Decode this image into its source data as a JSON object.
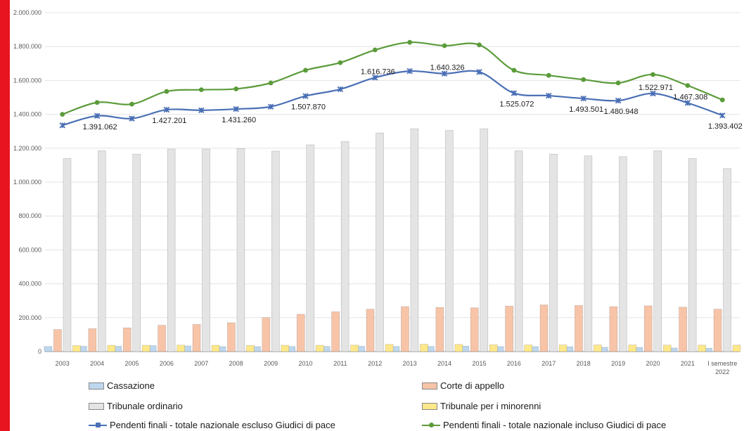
{
  "colors": {
    "cassazione": "#bdd7ee",
    "corte": "#f8c4a8",
    "tribunale": "#e4e4e4",
    "minorenni": "#ffe88a",
    "line_escluso": "#4a6fb5",
    "line_incluso": "#5b9b3a",
    "side_bar": "#e8141f"
  },
  "chart_data": {
    "type": "bar",
    "categories": [
      "2003",
      "2004",
      "2005",
      "2006",
      "2007",
      "2008",
      "2009",
      "2010",
      "2011",
      "2012",
      "2013",
      "2014",
      "2015",
      "2016",
      "2017",
      "2018",
      "2019",
      "2020",
      "2021",
      "I semestre 2022"
    ],
    "category_lines": [
      [
        "2003"
      ],
      [
        "2004"
      ],
      [
        "2005"
      ],
      [
        "2006"
      ],
      [
        "2007"
      ],
      [
        "2008"
      ],
      [
        "2009"
      ],
      [
        "2010"
      ],
      [
        "2011"
      ],
      [
        "2012"
      ],
      [
        "2013"
      ],
      [
        "2014"
      ],
      [
        "2015"
      ],
      [
        "2016"
      ],
      [
        "2017"
      ],
      [
        "2018"
      ],
      [
        "2019"
      ],
      [
        "2020"
      ],
      [
        "2021"
      ],
      [
        "I semestre",
        "2022"
      ]
    ],
    "ylim": [
      0,
      2000000
    ],
    "yticks": [
      0,
      200000,
      400000,
      600000,
      800000,
      1000000,
      1200000,
      1400000,
      1600000,
      1800000,
      2000000
    ],
    "ytick_labels": [
      "0",
      "200.000",
      "400.000",
      "600.000",
      "800.000",
      "1.000.000",
      "1.200.000",
      "1.400.000",
      "1.600.000",
      "1.800.000",
      "2.000.000"
    ],
    "grid": true,
    "legend_position": "bottom",
    "bar_series": [
      {
        "name": "Cassazione",
        "key": "cassazione",
        "values": [
          30000,
          31000,
          31000,
          35000,
          33000,
          29000,
          29000,
          30000,
          30000,
          31000,
          30000,
          30000,
          32000,
          29000,
          29000,
          28000,
          25000,
          24000,
          21000,
          20000
        ]
      },
      {
        "name": "Corte di appello",
        "key": "corte",
        "values": [
          130000,
          135000,
          140000,
          155000,
          160000,
          170000,
          200000,
          220000,
          235000,
          250000,
          265000,
          260000,
          258000,
          268000,
          275000,
          272000,
          265000,
          270000,
          262000,
          250000
        ]
      },
      {
        "name": "Tribunale ordinario",
        "key": "tribunale",
        "values": [
          1140000,
          1185000,
          1165000,
          1195000,
          1195000,
          1198000,
          1183000,
          1220000,
          1240000,
          1290000,
          1315000,
          1305000,
          1315000,
          1185000,
          1165000,
          1155000,
          1150000,
          1185000,
          1140000,
          1080000
        ]
      },
      {
        "name": "Tribunale per i minorenni",
        "key": "minorenni",
        "values": [
          35000,
          37000,
          37000,
          38000,
          37000,
          36000,
          37000,
          37000,
          38000,
          42000,
          43000,
          42000,
          40000,
          39000,
          39000,
          39000,
          39000,
          38000,
          38000,
          38000
        ]
      }
    ],
    "line_series": [
      {
        "name": "Pendenti finali - totale nazionale escluso Giudici di pace",
        "key": "line_escluso",
        "marker": "x",
        "values": [
          1335000,
          1391062,
          1375000,
          1427201,
          1424000,
          1431260,
          1445000,
          1507870,
          1548000,
          1616736,
          1655000,
          1640326,
          1650000,
          1525072,
          1510000,
          1493501,
          1480948,
          1522971,
          1467308,
          1393402
        ],
        "labels": [
          "",
          "1.391.062",
          "",
          "1.427.201",
          "",
          "1.431.260",
          "",
          "1.507.870",
          "",
          "1.616.736",
          "",
          "1.640.326",
          "",
          "1.525.072",
          "",
          "1.493.501",
          "1.480.948",
          "1.522.971",
          "1.467.308",
          "1.393.402"
        ]
      },
      {
        "name": "Pendenti finali - totale nazionale incluso Giudici di pace",
        "key": "line_incluso",
        "marker": "dot",
        "values": [
          1400000,
          1470000,
          1460000,
          1535000,
          1545000,
          1550000,
          1585000,
          1660000,
          1705000,
          1780000,
          1825000,
          1805000,
          1810000,
          1660000,
          1630000,
          1605000,
          1585000,
          1635000,
          1570000,
          1485000
        ]
      }
    ]
  },
  "legend": {
    "cassazione": "Cassazione",
    "corte": "Corte di appello",
    "tribunale": "Tribunale ordinario",
    "minorenni": "Tribunale per i minorenni",
    "line_escluso": "Pendenti finali - totale nazionale escluso Giudici di pace",
    "line_incluso": "Pendenti finali - totale nazionale incluso Giudici di pace"
  }
}
